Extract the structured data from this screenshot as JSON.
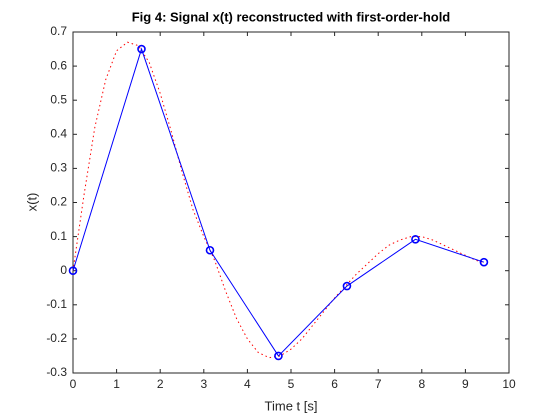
{
  "chart_data": {
    "type": "line",
    "title": "Fig 4: Signal x(t) reconstructed with first-order-hold",
    "x_label": "Time t [s]",
    "y_label": "x(t)",
    "xlim": [
      0,
      10
    ],
    "ylim": [
      -0.3,
      0.7
    ],
    "xticks": [
      0,
      1,
      2,
      3,
      4,
      5,
      6,
      7,
      8,
      9,
      10
    ],
    "yticks": [
      -0.3,
      -0.2,
      -0.1,
      0,
      0.1,
      0.2,
      0.3,
      0.4,
      0.5,
      0.6,
      0.7
    ],
    "grid": false,
    "series": [
      {
        "color": "#ff0000",
        "linestyle": "dotted",
        "marker": "none",
        "x": [
          0,
          0.25,
          0.5,
          0.75,
          1.0,
          1.25,
          1.5,
          1.75,
          2.0,
          2.25,
          2.5,
          2.75,
          3.0,
          3.25,
          3.5,
          3.75,
          4.0,
          4.25,
          4.5,
          4.75,
          5.0,
          5.25,
          5.5,
          5.75,
          6.0,
          6.25,
          6.5,
          6.75,
          7.0,
          7.25,
          7.5,
          7.75,
          8.0,
          8.25,
          8.5,
          8.75,
          9.0,
          9.25,
          9.4
        ],
        "values": [
          0,
          0.22,
          0.42,
          0.56,
          0.645,
          0.67,
          0.66,
          0.61,
          0.52,
          0.41,
          0.29,
          0.18,
          0.1,
          0.03,
          -0.06,
          -0.14,
          -0.2,
          -0.24,
          -0.255,
          -0.25,
          -0.23,
          -0.2,
          -0.16,
          -0.12,
          -0.08,
          -0.045,
          -0.01,
          0.02,
          0.05,
          0.075,
          0.09,
          0.1,
          0.1,
          0.09,
          0.075,
          0.06,
          0.045,
          0.03,
          0.025
        ]
      },
      {
        "color": "#0000ff",
        "linestyle": "solid",
        "marker": "circle",
        "x": [
          0,
          1.571,
          3.142,
          4.712,
          6.283,
          7.854,
          9.425
        ],
        "values": [
          0,
          0.65,
          0.06,
          -0.25,
          -0.045,
          0.092,
          0.025
        ]
      }
    ]
  }
}
